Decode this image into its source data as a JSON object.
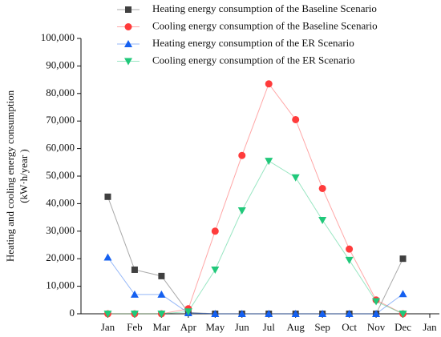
{
  "chart_data": {
    "type": "line",
    "ylabel": [
      "Heating and cooling energy consumption",
      "(kW·h/year )"
    ],
    "categories": [
      "Jan",
      "Feb",
      "Mar",
      "Apr",
      "May",
      "Jun",
      "Jul",
      "Aug",
      "Sep",
      "Oct",
      "Nov",
      "Dec",
      "Jan"
    ],
    "series": [
      {
        "name": "Heating energy consumption of the Baseline Scenario",
        "color": "#404040",
        "marker": "square",
        "values": [
          42500,
          16000,
          13700,
          500,
          0,
          0,
          0,
          0,
          0,
          0,
          0,
          20000,
          null
        ]
      },
      {
        "name": "Cooling energy consumption of the Baseline Scenario",
        "color": "#ff3b3b",
        "marker": "circle",
        "values": [
          0,
          0,
          0,
          1800,
          30000,
          57500,
          83500,
          70500,
          45500,
          23500,
          5000,
          0,
          null
        ]
      },
      {
        "name": "Heating energy consumption of the ER Scenario",
        "color": "#1560f0",
        "marker": "triangle-up",
        "values": [
          20500,
          7000,
          7000,
          300,
          0,
          0,
          0,
          0,
          0,
          0,
          0,
          7200,
          null
        ]
      },
      {
        "name": "Cooling energy consumption of the ER Scenario",
        "color": "#20c87a",
        "marker": "triangle-down",
        "values": [
          0,
          0,
          0,
          800,
          16000,
          37500,
          55500,
          49500,
          34000,
          19500,
          4500,
          0,
          null
        ]
      }
    ],
    "ylim": [
      0,
      100000
    ],
    "yticks": [
      0,
      {
        "value": 10000,
        "label": "10,000"
      },
      {
        "value": 20000,
        "label": "20,000"
      },
      {
        "value": 30000,
        "label": "30,000"
      },
      {
        "value": 40000,
        "label": "40,000"
      },
      {
        "value": 50000,
        "label": "50,000"
      },
      {
        "value": 60000,
        "label": "60,000"
      },
      {
        "value": 70000,
        "label": "70,000"
      },
      {
        "value": 80000,
        "label": "80,000"
      },
      {
        "value": 90000,
        "label": "90,000"
      },
      {
        "value": 100000,
        "label": "100,000"
      }
    ],
    "legend": "top"
  }
}
